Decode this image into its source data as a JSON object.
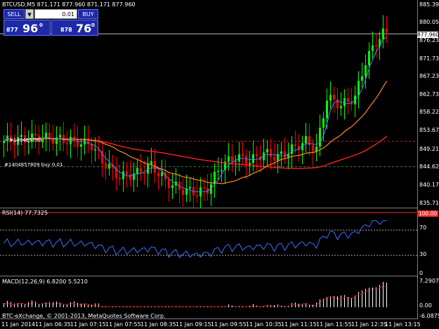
{
  "chart_window": {
    "title": "BTCUSD,M5  871.171 877.960 871.171 877.960",
    "rsi_title": "RSI(14) 77.7325",
    "macd_title": "MACD(12,26,9) 6.8200 5.5210",
    "copyright": "BTC-eXchange, © 2001-2013, MetaQuotes Software Corp."
  },
  "trade_panel": {
    "sell_label": "SELL",
    "buy_label": "BUY",
    "lot_value": "0.01",
    "sell_price_prefix": "877",
    "sell_price_main": "96",
    "sell_price_sup": "0",
    "buy_price_prefix": "878",
    "buy_price_main": "76",
    "buy_price_sup": "0"
  },
  "orders": [
    {
      "label": "#1404857809 buy 0.01",
      "price": 844.6
    },
    {
      "label": "#140485780",
      "price": 851.3
    }
  ],
  "price_axis": {
    "labels": [
      "885.395",
      "880.055",
      "876.235",
      "871.735",
      "867.235",
      "862.735",
      "858.220",
      "853.670",
      "849.215",
      "844.625",
      "840.170",
      "835.715"
    ],
    "current_price": "877.960"
  },
  "rsi_axis": {
    "labels": [
      "70",
      "30",
      "0"
    ],
    "value_tag": "100.00",
    "levels": [
      70,
      30
    ]
  },
  "macd_axis": {
    "labels": [
      "7.2907",
      "0.00",
      "-6.0875"
    ]
  },
  "time_axis": {
    "labels": [
      "11 Jan 2014",
      "11 Jan 06:35",
      "11 Jan 07:15",
      "11 Jan 07:55",
      "11 Jan 08:35",
      "11 Jan 09:15",
      "11 Jan 09:55",
      "11 Jan 10:35",
      "11 Jan 11:15",
      "11 Jan 11:55",
      "11 Jan 12:35",
      "11 Jan 13:15"
    ]
  },
  "colors": {
    "bull": "#00ff00",
    "bear": "#ff0000",
    "ma_fast": "#ff2020",
    "ma_slow": "#ff8c20",
    "ma_short": "#3a8dff",
    "rsi_line": "#3a6dff",
    "order_line": "#2e8b2e"
  }
}
